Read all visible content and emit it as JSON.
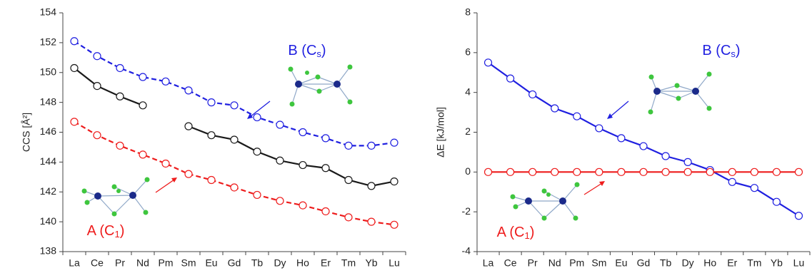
{
  "chart_data": [
    {
      "type": "line",
      "y_label": "CCS [Å²]",
      "categories": [
        "La",
        "Ce",
        "Pr",
        "Nd",
        "Pm",
        "Sm",
        "Eu",
        "Gd",
        "Tb",
        "Dy",
        "Ho",
        "Er",
        "Tm",
        "Yb",
        "Lu"
      ],
      "ylim": [
        138,
        154
      ],
      "yticks": [
        138,
        140,
        142,
        144,
        146,
        148,
        150,
        152,
        154
      ],
      "series": [
        {
          "color": "#1f1fe0",
          "dashed": true,
          "values": [
            152.1,
            151.1,
            150.3,
            149.7,
            149.4,
            148.8,
            148.0,
            147.8,
            147.0,
            146.5,
            146.0,
            145.6,
            145.1,
            145.1,
            145.3
          ]
        },
        {
          "color": "#1a1a1a",
          "dashed": false,
          "values": [
            150.3,
            149.1,
            148.4,
            147.8,
            null,
            146.4,
            145.8,
            145.5,
            144.7,
            144.1,
            143.8,
            143.6,
            142.8,
            142.4,
            142.7
          ]
        },
        {
          "color": "#ee1c1c",
          "dashed": true,
          "values": [
            146.7,
            145.8,
            145.1,
            144.5,
            143.9,
            143.2,
            142.8,
            142.3,
            141.8,
            141.4,
            141.1,
            140.7,
            140.3,
            140.0,
            139.8
          ]
        }
      ],
      "annotations": [
        {
          "text": "B (C",
          "sub": "s",
          "after": ")",
          "color": "#1f1fe0"
        },
        {
          "text": "A (C",
          "sub": "1",
          "after": ")",
          "color": "#ee1c1c"
        }
      ]
    },
    {
      "type": "line",
      "y_label": "ΔE [kJ/mol]",
      "categories": [
        "La",
        "Ce",
        "Pr",
        "Nd",
        "Pm",
        "Sm",
        "Eu",
        "Gd",
        "Tb",
        "Dy",
        "Ho",
        "Er",
        "Tm",
        "Yb",
        "Lu"
      ],
      "ylim": [
        -4,
        8
      ],
      "yticks": [
        -4,
        -2,
        0,
        2,
        4,
        6,
        8
      ],
      "series": [
        {
          "color": "#1f1fe0",
          "dashed": false,
          "values": [
            5.5,
            4.7,
            3.9,
            3.2,
            2.8,
            2.2,
            1.7,
            1.3,
            0.8,
            0.5,
            0.1,
            -0.5,
            -0.8,
            -1.5,
            -2.2
          ]
        },
        {
          "color": "#ee1c1c",
          "dashed": false,
          "values": [
            0,
            0,
            0,
            0,
            0,
            0,
            0,
            0,
            0,
            0,
            0,
            0,
            0,
            0,
            0
          ]
        }
      ],
      "annotations": [
        {
          "text": "B (C",
          "sub": "s",
          "after": ")",
          "color": "#1f1fe0"
        },
        {
          "text": "A (C",
          "sub": "1",
          "after": ")",
          "color": "#ee1c1c"
        }
      ]
    }
  ]
}
